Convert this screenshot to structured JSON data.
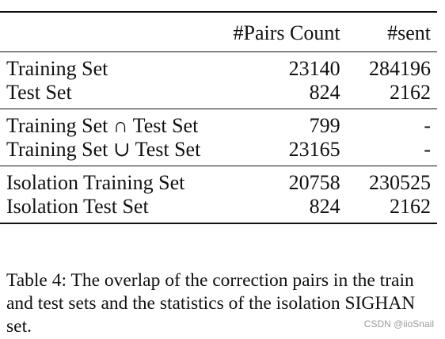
{
  "table": {
    "headers": [
      "",
      "#Pairs Count",
      "#sent"
    ],
    "groups": [
      [
        {
          "name": "Training Set",
          "pairs": "23140",
          "sent": "284196"
        },
        {
          "name": "Test Set",
          "pairs": "824",
          "sent": "2162"
        }
      ],
      [
        {
          "name": "Training Set ∩ Test Set",
          "pairs": "799",
          "sent": "-"
        },
        {
          "name": "Training Set ∪ Test Set",
          "pairs": "23165",
          "sent": "-"
        }
      ],
      [
        {
          "name": "Isolation Training Set",
          "pairs": "20758",
          "sent": "230525"
        },
        {
          "name": "Isolation Test Set",
          "pairs": "824",
          "sent": "2162"
        }
      ]
    ]
  },
  "caption": "Table 4: The overlap of the correction pairs in the train and test sets and the statistics of the isolation SIGHAN set.",
  "watermark": "CSDN @iioSnail"
}
